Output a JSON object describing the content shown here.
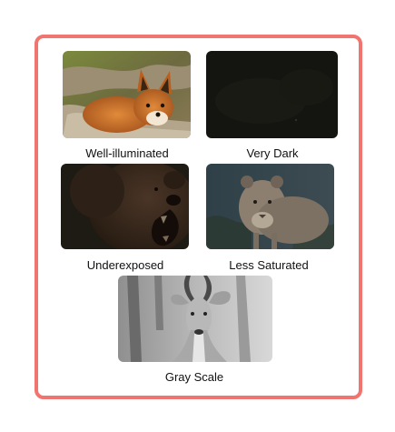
{
  "figure": {
    "frame_color": "#f07470",
    "panels": [
      {
        "id": "well",
        "label": "Well-illuminated",
        "subject": "fox-photo"
      },
      {
        "id": "dark",
        "label": "Very Dark",
        "subject": "dark-photo"
      },
      {
        "id": "under",
        "label": "Underexposed",
        "subject": "bear-photo"
      },
      {
        "id": "sat",
        "label": "Less Saturated",
        "subject": "lioness-photo"
      },
      {
        "id": "gray",
        "label": "Gray Scale",
        "subject": "antelope-photo"
      }
    ]
  }
}
